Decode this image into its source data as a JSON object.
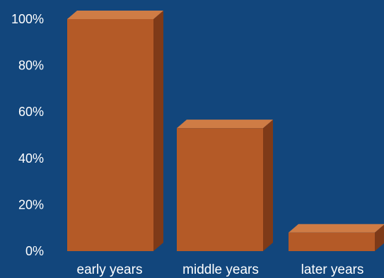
{
  "chart_data": {
    "type": "bar",
    "categories": [
      "early years",
      "middle years",
      "later years"
    ],
    "values": [
      100,
      53,
      8
    ],
    "ylim": [
      0,
      100
    ],
    "yticks": [
      0,
      20,
      40,
      60,
      80,
      100
    ],
    "ytick_labels": [
      "0%",
      "20%",
      "40%",
      "60%",
      "80%",
      "100%"
    ],
    "grid": false,
    "legend": "none",
    "title": "",
    "xlabel": "",
    "ylabel": "",
    "three_d": true
  },
  "colors": {
    "background": "#12467c",
    "bar_front": "#b45a27",
    "bar_top": "#cf7c45",
    "bar_side": "#7e3a18",
    "text": "#ffffff"
  }
}
